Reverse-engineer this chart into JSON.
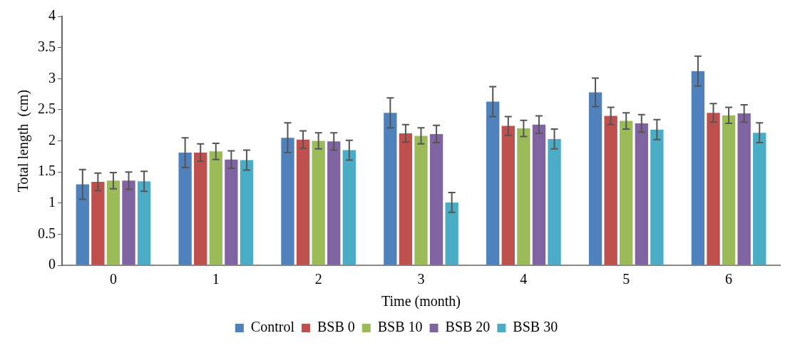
{
  "chart_data": {
    "type": "bar",
    "xlabel": "Time (month)",
    "ylabel": "Total length  (cm)",
    "categories": [
      "0",
      "1",
      "2",
      "3",
      "4",
      "5",
      "6"
    ],
    "series": [
      {
        "name": "Control",
        "color": "#4f81bd",
        "values": [
          1.3,
          1.81,
          2.05,
          2.45,
          2.63,
          2.78,
          3.12
        ],
        "errors": [
          0.24,
          0.24,
          0.24,
          0.24,
          0.24,
          0.23,
          0.24
        ]
      },
      {
        "name": "BSB 0",
        "color": "#c0504d",
        "values": [
          1.34,
          1.81,
          2.02,
          2.12,
          2.24,
          2.4,
          2.45
        ],
        "errors": [
          0.14,
          0.14,
          0.14,
          0.14,
          0.15,
          0.14,
          0.15
        ]
      },
      {
        "name": "BSB 10",
        "color": "#9bbb59",
        "values": [
          1.36,
          1.83,
          2.0,
          2.08,
          2.2,
          2.32,
          2.41
        ],
        "errors": [
          0.13,
          0.13,
          0.13,
          0.13,
          0.13,
          0.13,
          0.13
        ]
      },
      {
        "name": "BSB 20",
        "color": "#8064a2",
        "values": [
          1.36,
          1.7,
          1.99,
          2.11,
          2.26,
          2.28,
          2.44
        ],
        "errors": [
          0.14,
          0.14,
          0.14,
          0.14,
          0.14,
          0.14,
          0.14
        ]
      },
      {
        "name": "BSB 30",
        "color": "#4bacc6",
        "values": [
          1.35,
          1.69,
          1.85,
          1.01,
          2.03,
          2.18,
          2.13
        ],
        "errors": [
          0.16,
          0.16,
          0.16,
          0.16,
          0.16,
          0.16,
          0.16
        ]
      }
    ],
    "ylim": [
      0,
      4
    ],
    "yticks": [
      0,
      0.5,
      1,
      1.5,
      2,
      2.5,
      3,
      3.5,
      4
    ],
    "grid": false,
    "legend": "bottom"
  }
}
